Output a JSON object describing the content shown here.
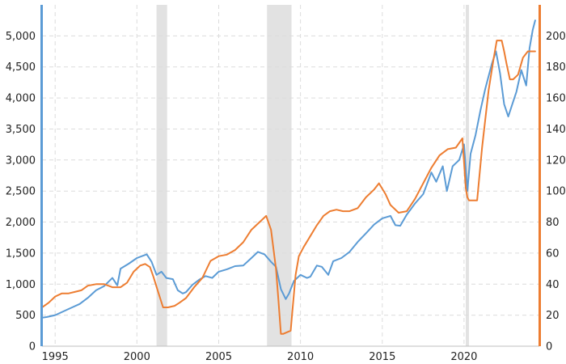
{
  "chart_data": {
    "type": "line",
    "title": "",
    "xlabel": "",
    "ylabel": "",
    "grid": true,
    "legend": "none",
    "xlim": [
      1994.2,
      2024.6
    ],
    "y_left_lim": [
      0,
      5500
    ],
    "y_right_lim": [
      0,
      220
    ],
    "x_ticks": [
      1995,
      2000,
      2005,
      2010,
      2015,
      2020
    ],
    "x_tick_labels": [
      "1995",
      "2000",
      "2005",
      "2010",
      "2015",
      "2020"
    ],
    "y_left_ticks": [
      0,
      500,
      1000,
      1500,
      2000,
      2500,
      3000,
      3500,
      4000,
      4500,
      5000
    ],
    "y_left_tick_labels": [
      "0",
      "500",
      "1,000",
      "1,500",
      "2,000",
      "2,500",
      "3,000",
      "3,500",
      "4,000",
      "4,500",
      "5,000"
    ],
    "y_right_ticks": [
      0,
      20,
      40,
      60,
      80,
      100,
      120,
      140,
      160,
      180,
      200
    ],
    "y_right_tick_labels": [
      "0",
      "20",
      "40",
      "60",
      "80",
      "100",
      "120",
      "140",
      "160",
      "180",
      "200"
    ],
    "recessions": [
      [
        2001.2,
        2001.85
      ],
      [
        2007.95,
        2009.45
      ],
      [
        2020.1,
        2020.3
      ]
    ],
    "colors": {
      "left": "#5b9bd5",
      "right": "#ed7d31",
      "recession": "#e2e2e2"
    },
    "series": [
      {
        "axis": "left",
        "color": "#5b9bd5",
        "x": [
          1994.2,
          1994.5,
          1995.0,
          1995.5,
          1996.0,
          1996.5,
          1997.0,
          1997.5,
          1998.0,
          1998.5,
          1998.8,
          1999.0,
          1999.5,
          2000.0,
          2000.3,
          2000.6,
          2000.9,
          2001.2,
          2001.5,
          2001.8,
          2002.2,
          2002.5,
          2002.8,
          2003.0,
          2003.4,
          2003.8,
          2004.2,
          2004.6,
          2005.0,
          2005.5,
          2006.0,
          2006.5,
          2007.0,
          2007.4,
          2007.8,
          2008.2,
          2008.5,
          2008.8,
          2009.1,
          2009.3,
          2009.6,
          2010.0,
          2010.4,
          2010.6,
          2011.0,
          2011.3,
          2011.7,
          2012.0,
          2012.5,
          2013.0,
          2013.5,
          2014.0,
          2014.5,
          2015.0,
          2015.5,
          2015.8,
          2016.1,
          2016.5,
          2017.0,
          2017.5,
          2018.0,
          2018.3,
          2018.7,
          2018.95,
          2019.3,
          2019.7,
          2020.0,
          2020.2,
          2020.4,
          2020.7,
          2021.0,
          2021.3,
          2021.7,
          2021.95,
          2022.2,
          2022.45,
          2022.7,
          2022.95,
          2023.2,
          2023.5,
          2023.8,
          2024.0,
          2024.2,
          2024.35
        ],
        "values": [
          460,
          470,
          500,
          560,
          620,
          680,
          780,
          900,
          970,
          1100,
          980,
          1250,
          1330,
          1420,
          1450,
          1480,
          1360,
          1150,
          1200,
          1100,
          1080,
          900,
          850,
          870,
          990,
          1070,
          1130,
          1100,
          1200,
          1240,
          1290,
          1300,
          1420,
          1520,
          1480,
          1360,
          1280,
          920,
          760,
          850,
          1050,
          1150,
          1100,
          1120,
          1300,
          1280,
          1150,
          1370,
          1420,
          1520,
          1680,
          1820,
          1960,
          2060,
          2100,
          1950,
          1940,
          2120,
          2300,
          2450,
          2800,
          2650,
          2900,
          2500,
          2900,
          3000,
          3250,
          2500,
          3100,
          3400,
          3800,
          4150,
          4550,
          4750,
          4400,
          3900,
          3700,
          3900,
          4100,
          4450,
          4200,
          4800,
          5100,
          5250
        ]
      },
      {
        "axis": "right",
        "color": "#ed7d31",
        "x": [
          1994.2,
          1994.6,
          1995.0,
          1995.4,
          1995.8,
          1996.2,
          1996.6,
          1997.0,
          1997.5,
          1998.0,
          1998.5,
          1999.0,
          1999.4,
          1999.8,
          2000.2,
          2000.5,
          2000.8,
          2001.0,
          2001.3,
          2001.6,
          2001.9,
          2002.3,
          2002.6,
          2003.0,
          2003.5,
          2004.0,
          2004.5,
          2005.0,
          2005.5,
          2006.0,
          2006.5,
          2007.0,
          2007.5,
          2007.9,
          2008.2,
          2008.5,
          2008.65,
          2008.8,
          2008.95,
          2009.4,
          2009.5,
          2009.7,
          2009.9,
          2010.2,
          2010.6,
          2011.0,
          2011.4,
          2011.8,
          2012.2,
          2012.6,
          2013.0,
          2013.5,
          2014.0,
          2014.5,
          2014.8,
          2015.2,
          2015.5,
          2016.0,
          2016.5,
          2017.0,
          2017.5,
          2018.0,
          2018.5,
          2019.0,
          2019.5,
          2019.9,
          2020.1,
          2020.2,
          2020.3,
          2020.8,
          2021.1,
          2021.5,
          2021.8,
          2022.0,
          2022.3,
          2022.45,
          2022.6,
          2022.8,
          2023.0,
          2023.3,
          2023.6,
          2023.9,
          2024.1,
          2024.35
        ],
        "values": [
          25,
          28,
          32,
          34,
          34,
          35,
          36,
          39,
          40,
          40,
          38,
          38,
          41,
          48,
          52,
          53,
          51,
          45,
          35,
          25,
          25,
          26,
          28,
          31,
          38,
          44,
          55,
          58,
          59,
          62,
          67,
          75,
          80,
          84,
          75,
          50,
          30,
          8,
          8,
          10,
          22,
          46,
          58,
          64,
          71,
          78,
          84,
          87,
          88,
          87,
          87,
          89,
          96,
          101,
          105,
          98,
          91,
          86,
          87,
          95,
          105,
          115,
          123,
          127,
          128,
          134,
          102,
          96,
          94,
          94,
          128,
          165,
          185,
          197,
          197,
          190,
          182,
          172,
          172,
          175,
          186,
          190,
          190,
          190
        ]
      }
    ]
  }
}
